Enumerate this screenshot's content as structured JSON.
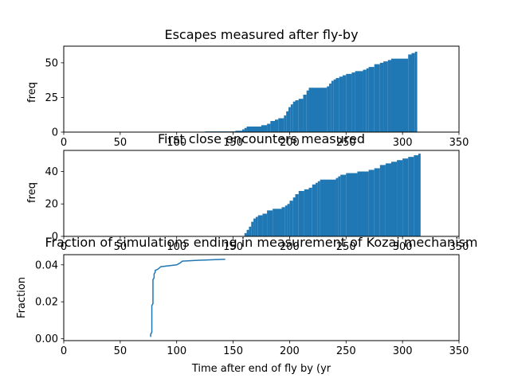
{
  "chart_data": [
    {
      "type": "bar",
      "title": "Escapes measured after fly-by",
      "xlabel": "",
      "ylabel": "freq",
      "xlim": [
        0,
        350
      ],
      "ylim": [
        0,
        62
      ],
      "xticks": [
        "0",
        "50",
        "100",
        "150",
        "200",
        "250",
        "300",
        "350"
      ],
      "yticks": [
        "0",
        "25",
        "50"
      ],
      "color": "#1f77b4",
      "steps": [
        [
          125,
          0.5
        ],
        [
          152,
          1
        ],
        [
          158,
          2
        ],
        [
          160,
          3
        ],
        [
          162,
          4
        ],
        [
          175,
          5
        ],
        [
          180,
          6
        ],
        [
          183,
          8
        ],
        [
          187,
          9
        ],
        [
          190,
          10
        ],
        [
          195,
          12
        ],
        [
          197,
          15
        ],
        [
          199,
          18
        ],
        [
          201,
          20
        ],
        [
          203,
          22
        ],
        [
          205,
          23
        ],
        [
          208,
          24
        ],
        [
          212,
          27
        ],
        [
          215,
          30
        ],
        [
          217,
          32
        ],
        [
          233,
          33
        ],
        [
          235,
          35
        ],
        [
          237,
          37
        ],
        [
          239,
          38
        ],
        [
          241,
          39
        ],
        [
          244,
          40
        ],
        [
          247,
          41
        ],
        [
          250,
          42
        ],
        [
          255,
          43
        ],
        [
          258,
          44
        ],
        [
          265,
          45
        ],
        [
          268,
          46
        ],
        [
          270,
          47
        ],
        [
          275,
          49
        ],
        [
          280,
          50
        ],
        [
          283,
          51
        ],
        [
          287,
          52
        ],
        [
          290,
          53
        ],
        [
          305,
          56
        ],
        [
          308,
          57
        ],
        [
          311,
          58
        ]
      ],
      "x_end": 313
    },
    {
      "type": "bar",
      "title": "First close encounters measured",
      "xlabel": "",
      "ylabel": "freq",
      "xlim": [
        0,
        350
      ],
      "ylim": [
        0,
        53
      ],
      "xticks": [
        "0",
        "50",
        "100",
        "150",
        "200",
        "250",
        "300",
        "350"
      ],
      "yticks": [
        "0",
        "20",
        "40"
      ],
      "color": "#1f77b4",
      "steps": [
        [
          160,
          2
        ],
        [
          162,
          4
        ],
        [
          164,
          6
        ],
        [
          166,
          9
        ],
        [
          168,
          11
        ],
        [
          170,
          12
        ],
        [
          172,
          13
        ],
        [
          176,
          14
        ],
        [
          180,
          16
        ],
        [
          185,
          17
        ],
        [
          193,
          18
        ],
        [
          196,
          19
        ],
        [
          198,
          20
        ],
        [
          200,
          22
        ],
        [
          203,
          24
        ],
        [
          205,
          26
        ],
        [
          208,
          28
        ],
        [
          213,
          29
        ],
        [
          217,
          30
        ],
        [
          220,
          32
        ],
        [
          223,
          33
        ],
        [
          225,
          34
        ],
        [
          227,
          35
        ],
        [
          241,
          36
        ],
        [
          243,
          37
        ],
        [
          245,
          38
        ],
        [
          250,
          39
        ],
        [
          260,
          40
        ],
        [
          270,
          41
        ],
        [
          275,
          42
        ],
        [
          280,
          44
        ],
        [
          285,
          45
        ],
        [
          290,
          46
        ],
        [
          295,
          47
        ],
        [
          300,
          48
        ],
        [
          305,
          49
        ],
        [
          310,
          50
        ],
        [
          314,
          51
        ]
      ],
      "x_end": 316
    },
    {
      "type": "line",
      "title": "Fraction of simulations ending in measurement of Kozai mechanism",
      "xlabel": "Time after end of fly by (yr",
      "ylabel": "Fraction",
      "xlim": [
        0,
        350
      ],
      "ylim": [
        -0.001,
        0.0455
      ],
      "xticks": [
        "0",
        "50",
        "100",
        "150",
        "200",
        "250",
        "300",
        "350"
      ],
      "yticks": [
        "0.00",
        "0.02",
        "0.04"
      ],
      "color": "#1f77b4",
      "x": [
        77,
        77,
        78,
        78,
        79,
        79,
        80,
        80,
        81,
        81,
        83,
        84,
        86,
        100,
        103,
        105,
        120,
        143
      ],
      "y": [
        0.001,
        0.0025,
        0.0035,
        0.018,
        0.019,
        0.032,
        0.033,
        0.035,
        0.036,
        0.037,
        0.0375,
        0.038,
        0.039,
        0.04,
        0.041,
        0.042,
        0.0425,
        0.043
      ]
    }
  ]
}
